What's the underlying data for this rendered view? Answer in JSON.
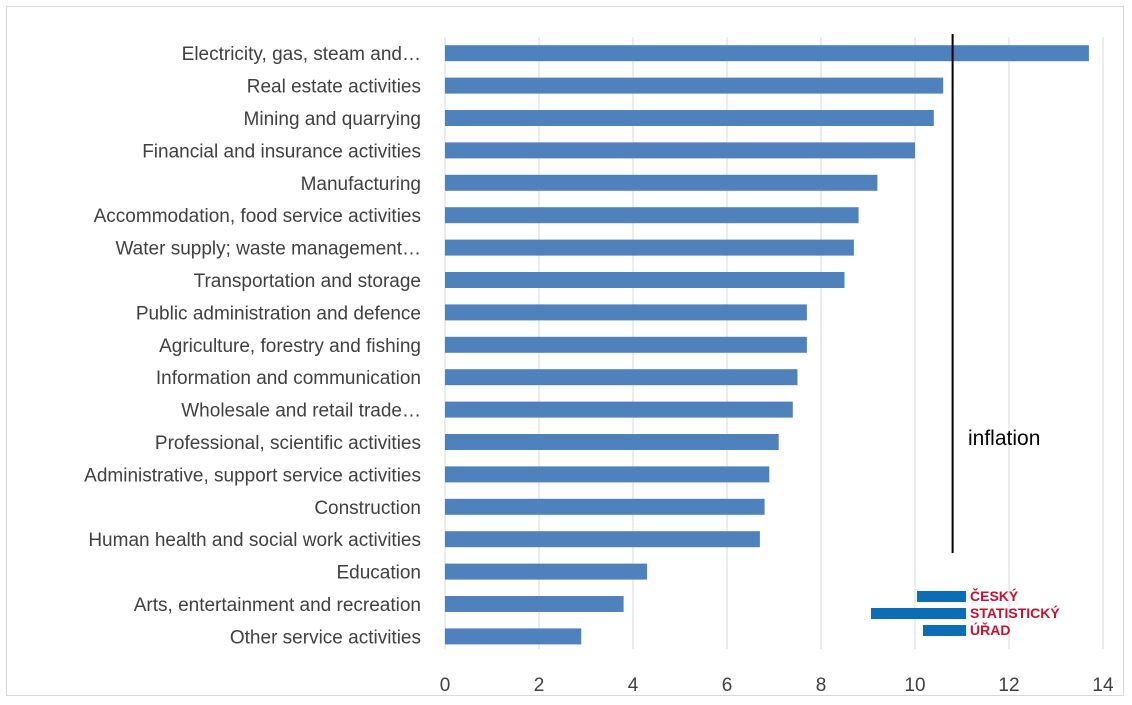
{
  "chart_data": {
    "type": "bar",
    "orientation": "horizontal",
    "categories": [
      "Electricity, gas, steam and…",
      "Real estate activities",
      "Mining and quarrying",
      "Financial and insurance activities",
      "Manufacturing",
      "Accommodation, food service activities",
      "Water supply; waste management…",
      "Transportation and storage",
      "Public administration and defence",
      "Agriculture, forestry and fishing",
      "Information and communication",
      "Wholesale and retail trade…",
      "Professional, scientific activities",
      "Administrative, support service activities",
      "Construction",
      "Human health and social work activities",
      "Education",
      "Arts, entertainment and recreation",
      "Other service activities"
    ],
    "values": [
      13.7,
      10.6,
      10.4,
      10.0,
      9.2,
      8.8,
      8.7,
      8.5,
      7.7,
      7.7,
      7.5,
      7.4,
      7.1,
      6.9,
      6.8,
      6.7,
      4.3,
      3.8,
      2.9
    ],
    "xlim": [
      0,
      14
    ],
    "xticks": [
      "0",
      "2",
      "4",
      "6",
      "8",
      "10",
      "12",
      "14"
    ],
    "grid": "vertical",
    "bar_color": "#4f81bd",
    "reference_line": {
      "value": 10.8,
      "label": "inflation",
      "color": "#000000"
    },
    "title": "",
    "xlabel": "",
    "ylabel": ""
  },
  "logo": {
    "line1": "ČESKÝ",
    "line2": "STATISTICKÝ",
    "line3": "ÚŘAD",
    "bar_color": "#0b6db5",
    "text_color": "#c8102e"
  }
}
